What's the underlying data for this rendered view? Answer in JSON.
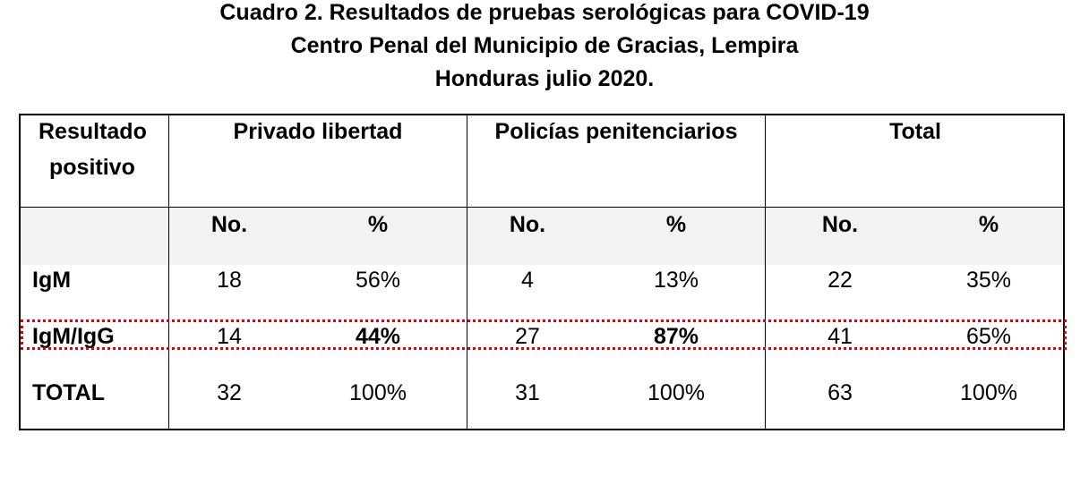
{
  "title": {
    "line1": "Cuadro 2. Resultados de pruebas serológicas para COVID-19",
    "line2": "Centro Penal del Municipio de Gracias, Lempira",
    "line3": "Honduras julio 2020."
  },
  "table": {
    "header": {
      "col0_line1": "Resultado",
      "col0_line2": "positivo",
      "group1": "Privado libertad",
      "group2": "Policías penitenciarios",
      "group3": "Total"
    },
    "subheader": {
      "g1_no": "No.",
      "g1_pct": "%",
      "g2_no": "No.",
      "g2_pct": "%",
      "g3_no": "No.",
      "g3_pct": "%"
    },
    "rows": [
      {
        "label": "IgM",
        "g1_no": "18",
        "g1_pct": "56%",
        "g2_no": "4",
        "g2_pct": "13%",
        "g3_no": "22",
        "g3_pct": "35%"
      },
      {
        "label": "IgM/IgG",
        "g1_no": "14",
        "g1_pct": "44%",
        "g2_no": "27",
        "g2_pct": "87%",
        "g3_no": "41",
        "g3_pct": "65%"
      },
      {
        "label": "TOTAL",
        "g1_no": "32",
        "g1_pct": "100%",
        "g2_no": "31",
        "g2_pct": "100%",
        "g3_no": "63",
        "g3_pct": "100%"
      }
    ]
  },
  "colors": {
    "highlight_border": "#e00000",
    "band_background": "#f2f2f2"
  }
}
